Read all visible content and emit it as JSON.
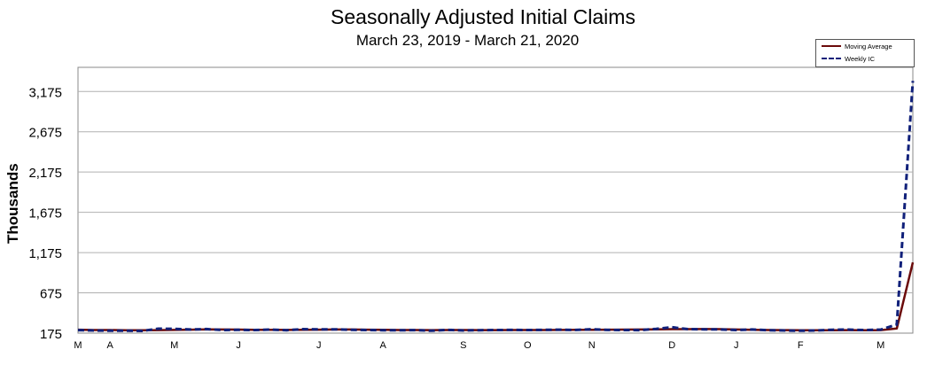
{
  "chart_data": {
    "type": "line",
    "title": "Seasonally Adjusted Initial Claims",
    "subtitle": "March 23, 2019 - March 21, 2020",
    "ylabel": "Thousands",
    "xlabel": "",
    "ylim": [
      175,
      3475
    ],
    "yticks": [
      175,
      675,
      1175,
      1675,
      2175,
      2675,
      3175
    ],
    "ytick_labels": [
      "175",
      "675",
      "1,175",
      "1,675",
      "2,175",
      "2,675",
      "3,175"
    ],
    "xtick_labels": [
      "M",
      "A",
      "M",
      "J",
      "J",
      "A",
      "S",
      "O",
      "N",
      "D",
      "J",
      "F",
      "M"
    ],
    "xtick_weeks": [
      0,
      2,
      6,
      10,
      15,
      19,
      24,
      28,
      32,
      37,
      41,
      45,
      50
    ],
    "grid": true,
    "legend_position": "top-right",
    "series": [
      {
        "name": "Moving Average",
        "color": "#6b0a0a",
        "style": "solid",
        "values": [
          218,
          214,
          213,
          210,
          210,
          212,
          215,
          218,
          222,
          220,
          219,
          217,
          216,
          215,
          217,
          218,
          220,
          220,
          218,
          216,
          214,
          213,
          212,
          213,
          213,
          212,
          212,
          213,
          214,
          214,
          215,
          216,
          217,
          218,
          219,
          220,
          222,
          224,
          225,
          226,
          224,
          220,
          216,
          214,
          212,
          211,
          210,
          211,
          212,
          211,
          212,
          232,
          1053
        ]
      },
      {
        "name": "Weekly IC",
        "color": "#10207a",
        "style": "dashed",
        "values": [
          212,
          208,
          205,
          206,
          203,
          230,
          228,
          220,
          226,
          214,
          216,
          213,
          219,
          211,
          224,
          221,
          222,
          216,
          214,
          211,
          210,
          212,
          205,
          216,
          208,
          211,
          213,
          215,
          213,
          216,
          218,
          215,
          223,
          215,
          213,
          212,
          228,
          248,
          224,
          222,
          221,
          214,
          220,
          211,
          208,
          205,
          208,
          217,
          219,
          212,
          219,
          282,
          3307
        ]
      }
    ]
  }
}
